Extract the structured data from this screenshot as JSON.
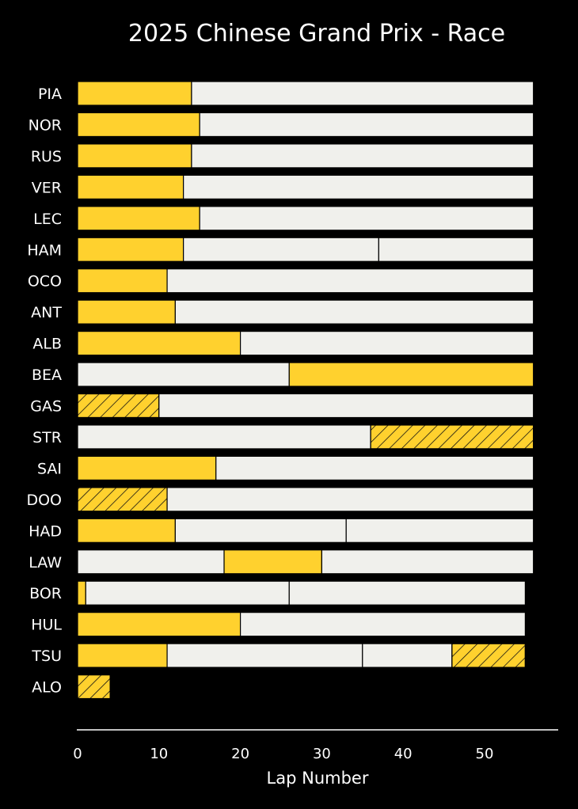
{
  "chart_data": {
    "type": "bar",
    "orientation": "horizontal-stacked",
    "title": "2025 Chinese Grand Prix - Race",
    "xlabel": "Lap Number",
    "ylabel": "",
    "xlim": [
      0,
      59
    ],
    "xticks": [
      0,
      10,
      20,
      30,
      40,
      50
    ],
    "grid": false,
    "compound_colors": {
      "MEDIUM": "#ffd12e",
      "HARD": "#f0f0ec"
    },
    "hatched_note": "hatched stints drawn with diagonal lines",
    "drivers": [
      {
        "driver": "PIA",
        "stints": [
          {
            "compound": "MEDIUM",
            "start": 0,
            "end": 14
          },
          {
            "compound": "HARD",
            "start": 14,
            "end": 56
          }
        ]
      },
      {
        "driver": "NOR",
        "stints": [
          {
            "compound": "MEDIUM",
            "start": 0,
            "end": 15
          },
          {
            "compound": "HARD",
            "start": 15,
            "end": 56
          }
        ]
      },
      {
        "driver": "RUS",
        "stints": [
          {
            "compound": "MEDIUM",
            "start": 0,
            "end": 14
          },
          {
            "compound": "HARD",
            "start": 14,
            "end": 56
          }
        ]
      },
      {
        "driver": "VER",
        "stints": [
          {
            "compound": "MEDIUM",
            "start": 0,
            "end": 13
          },
          {
            "compound": "HARD",
            "start": 13,
            "end": 56
          }
        ]
      },
      {
        "driver": "LEC",
        "stints": [
          {
            "compound": "MEDIUM",
            "start": 0,
            "end": 15
          },
          {
            "compound": "HARD",
            "start": 15,
            "end": 56
          }
        ]
      },
      {
        "driver": "HAM",
        "stints": [
          {
            "compound": "MEDIUM",
            "start": 0,
            "end": 13
          },
          {
            "compound": "HARD",
            "start": 13,
            "end": 37
          },
          {
            "compound": "HARD",
            "start": 37,
            "end": 56
          }
        ]
      },
      {
        "driver": "OCO",
        "stints": [
          {
            "compound": "MEDIUM",
            "start": 0,
            "end": 11
          },
          {
            "compound": "HARD",
            "start": 11,
            "end": 56
          }
        ]
      },
      {
        "driver": "ANT",
        "stints": [
          {
            "compound": "MEDIUM",
            "start": 0,
            "end": 12
          },
          {
            "compound": "HARD",
            "start": 12,
            "end": 56
          }
        ]
      },
      {
        "driver": "ALB",
        "stints": [
          {
            "compound": "MEDIUM",
            "start": 0,
            "end": 20
          },
          {
            "compound": "HARD",
            "start": 20,
            "end": 56
          }
        ]
      },
      {
        "driver": "BEA",
        "stints": [
          {
            "compound": "HARD",
            "start": 0,
            "end": 26
          },
          {
            "compound": "MEDIUM",
            "start": 26,
            "end": 56
          }
        ]
      },
      {
        "driver": "GAS",
        "stints": [
          {
            "compound": "MEDIUM",
            "start": 0,
            "end": 10,
            "hatched": true
          },
          {
            "compound": "HARD",
            "start": 10,
            "end": 56
          }
        ]
      },
      {
        "driver": "STR",
        "stints": [
          {
            "compound": "HARD",
            "start": 0,
            "end": 36
          },
          {
            "compound": "MEDIUM",
            "start": 36,
            "end": 56,
            "hatched": true
          }
        ]
      },
      {
        "driver": "SAI",
        "stints": [
          {
            "compound": "MEDIUM",
            "start": 0,
            "end": 17
          },
          {
            "compound": "HARD",
            "start": 17,
            "end": 56
          }
        ]
      },
      {
        "driver": "DOO",
        "stints": [
          {
            "compound": "MEDIUM",
            "start": 0,
            "end": 11,
            "hatched": true
          },
          {
            "compound": "HARD",
            "start": 11,
            "end": 56
          }
        ]
      },
      {
        "driver": "HAD",
        "stints": [
          {
            "compound": "MEDIUM",
            "start": 0,
            "end": 12
          },
          {
            "compound": "HARD",
            "start": 12,
            "end": 33
          },
          {
            "compound": "HARD",
            "start": 33,
            "end": 56
          }
        ]
      },
      {
        "driver": "LAW",
        "stints": [
          {
            "compound": "HARD",
            "start": 0,
            "end": 18
          },
          {
            "compound": "MEDIUM",
            "start": 18,
            "end": 30
          },
          {
            "compound": "HARD",
            "start": 30,
            "end": 56
          }
        ]
      },
      {
        "driver": "BOR",
        "stints": [
          {
            "compound": "MEDIUM",
            "start": 0,
            "end": 1
          },
          {
            "compound": "HARD",
            "start": 1,
            "end": 26
          },
          {
            "compound": "HARD",
            "start": 26,
            "end": 55
          }
        ]
      },
      {
        "driver": "HUL",
        "stints": [
          {
            "compound": "MEDIUM",
            "start": 0,
            "end": 20
          },
          {
            "compound": "HARD",
            "start": 20,
            "end": 55
          }
        ]
      },
      {
        "driver": "TSU",
        "stints": [
          {
            "compound": "MEDIUM",
            "start": 0,
            "end": 11
          },
          {
            "compound": "HARD",
            "start": 11,
            "end": 35
          },
          {
            "compound": "HARD",
            "start": 35,
            "end": 46
          },
          {
            "compound": "MEDIUM",
            "start": 46,
            "end": 55,
            "hatched": true
          }
        ]
      },
      {
        "driver": "ALO",
        "stints": [
          {
            "compound": "MEDIUM",
            "start": 0,
            "end": 4,
            "hatched": true
          }
        ]
      }
    ]
  }
}
